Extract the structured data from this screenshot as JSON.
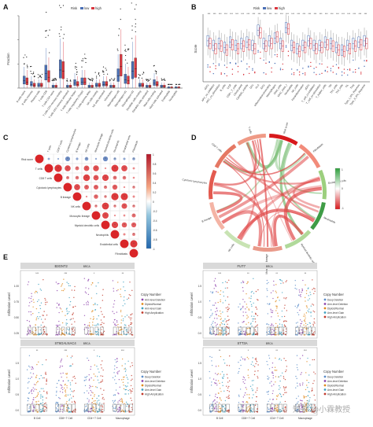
{
  "colors": {
    "low": "#4a6fb5",
    "high": "#d9363e",
    "pos": "#d7191c",
    "neg": "#2b58a8",
    "gainArm": "#e0a31c",
    "dip": "#7fb3d5",
    "deep": "#2c4a8f",
    "arml": "#9a9a9a",
    "highamp": "#c0392b"
  },
  "panelA": {
    "label": "A",
    "ylabel": "Fraction",
    "legend_title": "Risk",
    "legend": [
      "low",
      "high"
    ],
    "categories": [
      "B cells naive",
      "B cells memory",
      "Plasma cells",
      "T cells CD8",
      "T cells CD4 naive",
      "T cells CD4 memory resting",
      "T cells CD4 memory activated",
      "T cells follicular helper",
      "T cells regulatory (Tregs)",
      "T cells gamma delta",
      "NK cells resting",
      "NK cells activated",
      "Monocytes",
      "Macrophages M0",
      "Macrophages M1",
      "Macrophages M2",
      "Dendritic cells resting",
      "Dendritic cells activated",
      "Mast cells resting",
      "Mast cells activated",
      "Eosinophils",
      "Neutrophils"
    ],
    "chart_data": {
      "type": "box",
      "series": [
        {
          "name": "low",
          "values": [
            0.06,
            0.03,
            0.02,
            0.12,
            0.01,
            0.15,
            0.01,
            0.04,
            0.05,
            0.01,
            0.02,
            0.03,
            0.01,
            0.1,
            0.07,
            0.14,
            0.02,
            0.01,
            0.04,
            0.01,
            0.0,
            0.0
          ]
        },
        {
          "name": "high",
          "values": [
            0.05,
            0.02,
            0.02,
            0.09,
            0.01,
            0.14,
            0.01,
            0.03,
            0.05,
            0.01,
            0.02,
            0.03,
            0.01,
            0.18,
            0.06,
            0.16,
            0.02,
            0.01,
            0.03,
            0.01,
            0.0,
            0.0
          ]
        }
      ],
      "ylim": [
        0,
        0.6
      ]
    }
  },
  "panelB": {
    "label": "B",
    "ylabel": "Score",
    "legend_title": "Risk",
    "legend": [
      "low",
      "high"
    ],
    "categories": [
      "aDCs",
      "APC_co_inhibition",
      "APC_co_stimulation",
      "B_cells",
      "CCR",
      "CD8+_T_cells",
      "Check-point",
      "Cytolytic_activity",
      "DCs",
      "HLA",
      "iDCs",
      "Inflammation-promoting",
      "Macrophages",
      "Mast_cells",
      "MHC_class_I",
      "Neutrophils",
      "NK_cells",
      "Parainflammation",
      "pDCs",
      "T_cell_co-inhibition",
      "T_cell_co-stimulation",
      "T_helper_cells",
      "Tfh",
      "Th1_cells",
      "Th2_cells",
      "TIL",
      "Treg",
      "Type_I_IFN_Reponse",
      "Type_II_IFN_Reponse"
    ],
    "chart_data": {
      "type": "box",
      "series": [
        {
          "name": "low",
          "values": [
            0.62,
            0.55,
            0.58,
            0.52,
            0.6,
            0.55,
            0.58,
            0.6,
            0.55,
            0.78,
            0.58,
            0.62,
            0.66,
            0.58,
            0.82,
            0.55,
            0.5,
            0.55,
            0.62,
            0.55,
            0.55,
            0.6,
            0.58,
            0.52,
            0.48,
            0.55,
            0.58,
            0.6,
            0.62
          ]
        },
        {
          "name": "high",
          "values": [
            0.58,
            0.5,
            0.54,
            0.48,
            0.56,
            0.5,
            0.54,
            0.56,
            0.5,
            0.74,
            0.54,
            0.58,
            0.68,
            0.54,
            0.8,
            0.52,
            0.46,
            0.52,
            0.58,
            0.5,
            0.52,
            0.56,
            0.54,
            0.48,
            0.46,
            0.5,
            0.54,
            0.56,
            0.58
          ]
        }
      ],
      "ylim": [
        0,
        1
      ]
    }
  },
  "panelC": {
    "label": "C",
    "cells": [
      "Risk score",
      "T cells",
      "CD8 T cells",
      "Cytotoxic lymphocytes",
      "B lineage",
      "NK cells",
      "Monocytic lineage",
      "Myeloid dendritic cells",
      "Neutrophils",
      "Endothelial cells",
      "Fibroblasts"
    ],
    "scale": [
      "1",
      "0.8",
      "0.6",
      "0.4",
      "0.2",
      "0",
      "-0.2",
      "-0.4",
      "-0.6",
      "-0.8",
      "-1"
    ]
  },
  "panelD": {
    "label": "D",
    "nodes": [
      "Risk score",
      "Fibroblasts",
      "Endothelial cells",
      "Neutrophils",
      "Myeloid dendritic cells",
      "Monocytic lineage",
      "NK cells",
      "B lineage",
      "Cytotoxic lymphocytes",
      "CD8 T cells",
      "T cells"
    ],
    "scale": [
      "1",
      "0",
      "-1"
    ]
  },
  "panelE": {
    "label": "E",
    "ylabel": "Infiltration Level",
    "legend_title": "Copy Number",
    "xcats": [
      "B Cell",
      "CD8+ T Cell",
      "CD4+ T Cell",
      "Macrophage"
    ],
    "plots": [
      {
        "gene": "B3GNT2",
        "cancer": "BRCA",
        "legend": [
          "Arm-level Deletion",
          "Diploid/Normal",
          "Arm-level Gain",
          "High Amplication"
        ],
        "yticks": [
          "0.25",
          "0.50",
          "0.75",
          "1.00"
        ],
        "sig": [
          "***",
          "***",
          "*",
          "**"
        ]
      },
      {
        "gene": "FUT7",
        "cancer": "BRCA",
        "legend": [
          "Deep Deletion",
          "Arm-level Deletion",
          "Diploid/Normal",
          "Arm-level Gain",
          "High Amplication"
        ],
        "yticks": [
          "0.0",
          "0.5",
          "1.0",
          "1.5"
        ],
        "sig": [
          "***",
          "**",
          "**",
          "**"
        ]
      },
      {
        "gene": "ST6GALNAC4",
        "cancer": "BRCA",
        "legend": [
          "Deep Deletion",
          "Arm-level Deletion",
          "Diploid/Normal",
          "Arm-level Gain",
          "High Amplication"
        ],
        "yticks": [
          "0.0",
          "0.5",
          "1.0",
          "1.5"
        ],
        "sig": [
          "**",
          "***",
          "*",
          "***"
        ]
      },
      {
        "gene": "STT3A",
        "cancer": "BRCA",
        "legend": [
          "Deep Deletion",
          "Arm-level Deletion",
          "Diploid/Normal",
          "Arm-level Gain",
          "High Amplication"
        ],
        "yticks": [
          "0.0",
          "0.5",
          "1.0",
          "1.5"
        ],
        "sig": [
          "**",
          "*",
          "**",
          "***"
        ]
      }
    ]
  },
  "watermark": "知乎 @小霖教授"
}
